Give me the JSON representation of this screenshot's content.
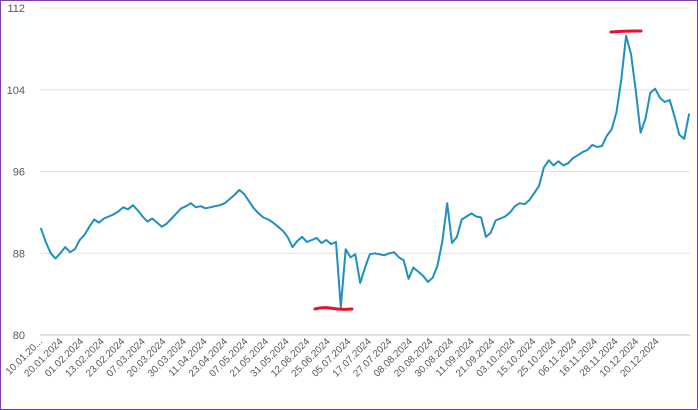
{
  "chart_data": {
    "type": "line",
    "title": "",
    "xlabel": "",
    "ylabel": "",
    "ylim": [
      80,
      112
    ],
    "y_ticks": [
      "80",
      "88",
      "96",
      "104",
      "112"
    ],
    "grid": "horizontal",
    "line_color": "#1f8fbf",
    "highlight_color": "#e8112d",
    "x_tick_labels": [
      "10.01.20...",
      "20.01.2024",
      "01.02.2024",
      "13.02.2024",
      "23.02.2024",
      "07.03.2024",
      "20.03.2024",
      "30.03.2024",
      "11.04.2024",
      "23.04.2024",
      "07.05.2024",
      "21.05.2024",
      "31.05.2024",
      "12.06.2024",
      "25.06.2024",
      "05.07.2024",
      "17.07.2024",
      "27.07.2024",
      "08.08.2024",
      "20.08.2024",
      "30.08.2024",
      "11.09.2024",
      "21.09.2024",
      "03.10.2024",
      "15.10.2024",
      "25.10.2024",
      "06.11.2024",
      "16.11.2024",
      "28.11.2024",
      "10.12.2024",
      "20.12.2024"
    ],
    "series": [
      {
        "values": [
          90.4,
          89.1,
          88.0,
          87.5,
          88.0,
          88.6,
          88.1,
          88.4,
          89.3,
          89.8,
          90.6,
          91.3,
          91.0,
          91.4,
          91.6,
          91.8,
          92.1,
          92.5,
          92.3,
          92.7,
          92.2,
          91.6,
          91.1,
          91.4,
          91.0,
          90.6,
          90.9,
          91.4,
          91.9,
          92.4,
          92.6,
          92.9,
          92.5,
          92.6,
          92.4,
          92.5,
          92.6,
          92.7,
          92.9,
          93.3,
          93.7,
          94.2,
          93.8,
          93.1,
          92.4,
          91.9,
          91.5,
          91.3,
          91.0,
          90.6,
          90.2,
          89.6,
          88.6,
          89.2,
          89.6,
          89.1,
          89.3,
          89.5,
          89.0,
          89.3,
          88.9,
          89.1,
          82.7,
          88.4,
          87.6,
          87.9,
          85.1,
          86.6,
          87.9,
          88.0,
          87.9,
          87.8,
          88.0,
          88.1,
          87.6,
          87.3,
          85.5,
          86.6,
          86.2,
          85.8,
          85.2,
          85.6,
          86.8,
          89.2,
          92.9,
          89.0,
          89.6,
          91.3,
          91.6,
          91.9,
          91.6,
          91.5,
          89.6,
          90.0,
          91.2,
          91.4,
          91.6,
          92.0,
          92.6,
          92.9,
          92.8,
          93.2,
          93.9,
          94.6,
          96.4,
          97.1,
          96.6,
          97.0,
          96.6,
          96.8,
          97.3,
          97.6,
          97.9,
          98.1,
          98.6,
          98.4,
          98.5,
          99.5,
          100.1,
          101.8,
          105.0,
          109.3,
          107.5,
          103.9,
          99.8,
          101.2,
          103.7,
          104.1,
          103.2,
          102.8,
          103.0,
          101.4,
          99.6,
          99.2,
          101.6
        ]
      }
    ]
  }
}
